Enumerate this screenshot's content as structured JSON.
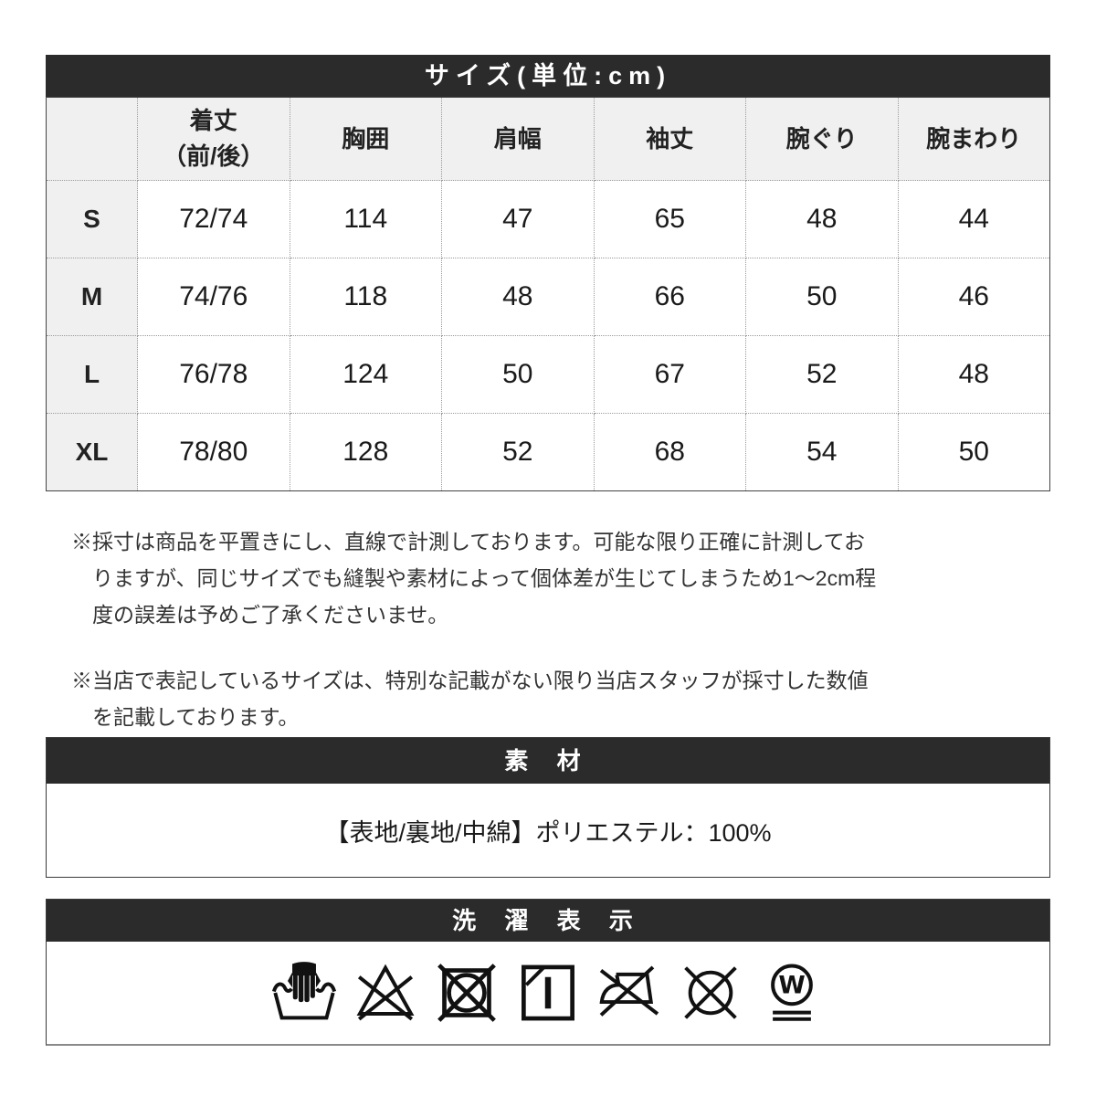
{
  "size_table": {
    "title": "サイズ(単位:cm)",
    "col_headers": [
      "着丈\n（前/後）",
      "胸囲",
      "肩幅",
      "袖丈",
      "腕ぐり",
      "腕まわり"
    ],
    "rows": [
      {
        "size": "S",
        "values": [
          "72/74",
          "114",
          "47",
          "65",
          "48",
          "44"
        ]
      },
      {
        "size": "M",
        "values": [
          "74/76",
          "118",
          "48",
          "66",
          "50",
          "46"
        ]
      },
      {
        "size": "L",
        "values": [
          "76/78",
          "124",
          "50",
          "67",
          "52",
          "48"
        ]
      },
      {
        "size": "XL",
        "values": [
          "78/80",
          "128",
          "52",
          "68",
          "54",
          "50"
        ]
      }
    ]
  },
  "notes": [
    "※採寸は商品を平置きにし、直線で計測しております。可能な限り正確に計測しておりますが、同じサイズでも縫製や素材によって個体差が生じてしまうため1～2cm程度の誤差は予めご了承くださいませ。",
    "※当店で表記しているサイズは、特別な記載がない限り当店スタッフが採寸した数値を記載しております。"
  ],
  "material": {
    "title": "素 材",
    "content": "【表地/裏地/中綿】ポリエステル：100%"
  },
  "laundry": {
    "title": "洗 濯 表 示",
    "icons": [
      "hand-wash-icon",
      "do-not-bleach-icon",
      "do-not-tumble-dry-icon",
      "shade-line-dry-icon",
      "do-not-iron-icon",
      "do-not-dry-clean-icon",
      "wet-clean-icon"
    ]
  },
  "colors": {
    "bar_background": "#2b2b2b",
    "header_cell_background": "#f0f0f0"
  }
}
